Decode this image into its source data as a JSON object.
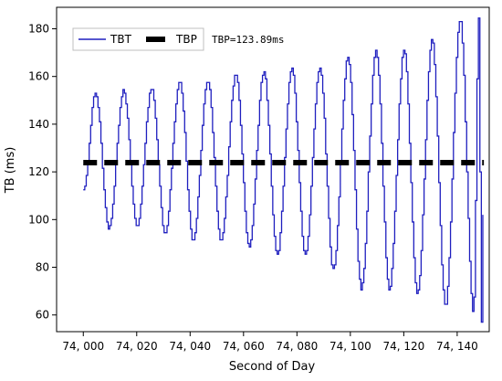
{
  "chart_data": {
    "type": "line",
    "xlabel": "Second of Day",
    "ylabel": "TB (ms)",
    "xlim": [
      73990,
      74152
    ],
    "ylim": [
      53,
      189
    ],
    "xticks": [
      74000,
      74020,
      74040,
      74060,
      74080,
      74100,
      74120,
      74140
    ],
    "xtick_labels": [
      "74, 000",
      "74, 020",
      "74, 040",
      "74, 060",
      "74, 080",
      "74, 100",
      "74, 120",
      "74, 140"
    ],
    "yticks": [
      60,
      80,
      100,
      120,
      140,
      160,
      180
    ],
    "ytick_labels": [
      "60",
      "80",
      "100",
      "120",
      "140",
      "160",
      "180"
    ],
    "grid": false,
    "legend_position": "top-left",
    "annotation": "TBP=123.89ms",
    "series": [
      {
        "name": "TBT",
        "style": "solid-stepped",
        "color": "#1f1fbf",
        "start": {
          "x": 74000,
          "y": 113
        },
        "end": {
          "x": 74150,
          "y": 126
        },
        "peaks": [
          {
            "x": 74004.5,
            "y": 153
          },
          {
            "x": 74015,
            "y": 154
          },
          {
            "x": 74025.5,
            "y": 155
          },
          {
            "x": 74036,
            "y": 158
          },
          {
            "x": 74046.5,
            "y": 158
          },
          {
            "x": 74057,
            "y": 161
          },
          {
            "x": 74067.5,
            "y": 162
          },
          {
            "x": 74078,
            "y": 163
          },
          {
            "x": 74088.5,
            "y": 164
          },
          {
            "x": 74099,
            "y": 168
          },
          {
            "x": 74109.5,
            "y": 171
          },
          {
            "x": 74120,
            "y": 171
          },
          {
            "x": 74130.5,
            "y": 175
          },
          {
            "x": 74141,
            "y": 184
          },
          {
            "x": 74148,
            "y": 184
          }
        ],
        "troughs": [
          {
            "x": 74009.5,
            "y": 96
          },
          {
            "x": 74020,
            "y": 97
          },
          {
            "x": 74030.5,
            "y": 94
          },
          {
            "x": 74041,
            "y": 91
          },
          {
            "x": 74051.5,
            "y": 91
          },
          {
            "x": 74062,
            "y": 89
          },
          {
            "x": 74072.5,
            "y": 85
          },
          {
            "x": 74083,
            "y": 85
          },
          {
            "x": 74093.5,
            "y": 79
          },
          {
            "x": 74104,
            "y": 71
          },
          {
            "x": 74114.5,
            "y": 71
          },
          {
            "x": 74125,
            "y": 69
          },
          {
            "x": 74135.5,
            "y": 64
          },
          {
            "x": 74146,
            "y": 61
          },
          {
            "x": 74149,
            "y": 57
          }
        ]
      },
      {
        "name": "TBP",
        "style": "thick-dashed",
        "color": "#000000",
        "x": [
          74000,
          74150
        ],
        "y": [
          123.89,
          123.89
        ]
      }
    ]
  }
}
